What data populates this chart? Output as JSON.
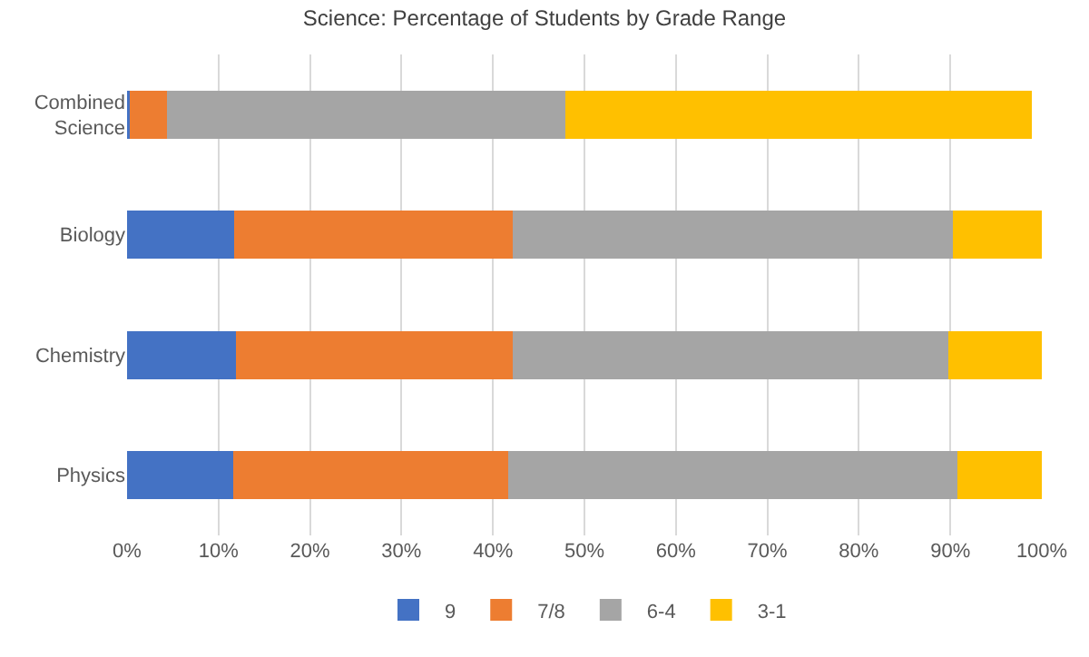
{
  "chart_data": {
    "type": "bar",
    "title": "Science: Percentage of Students by Grade Range",
    "orientation": "horizontal",
    "stacked": true,
    "categories": [
      "Combined Science",
      "Biology",
      "Chemistry",
      "Physics"
    ],
    "series": [
      {
        "name": "9",
        "color": "#4472c4",
        "values": [
          0.3,
          11.7,
          11.9,
          11.6
        ]
      },
      {
        "name": "7/8",
        "color": "#ed7d31",
        "values": [
          4.1,
          30.5,
          30.3,
          30.1
        ]
      },
      {
        "name": "6-4",
        "color": "#a5a5a5",
        "values": [
          43.5,
          48.1,
          47.6,
          49.1
        ]
      },
      {
        "name": "3-1",
        "color": "#ffc000",
        "values": [
          51.0,
          9.7,
          10.2,
          9.2
        ]
      }
    ],
    "xlim": [
      0,
      100
    ],
    "xticks": [
      {
        "value": 0,
        "label": "0%"
      },
      {
        "value": 10,
        "label": "10%"
      },
      {
        "value": 20,
        "label": "20%"
      },
      {
        "value": 30,
        "label": "30%"
      },
      {
        "value": 40,
        "label": "40%"
      },
      {
        "value": 50,
        "label": "50%"
      },
      {
        "value": 60,
        "label": "60%"
      },
      {
        "value": 70,
        "label": "70%"
      },
      {
        "value": 80,
        "label": "80%"
      },
      {
        "value": 90,
        "label": "90%"
      },
      {
        "value": 100,
        "label": "100%"
      }
    ],
    "grid": "x",
    "legend": "bottom"
  }
}
